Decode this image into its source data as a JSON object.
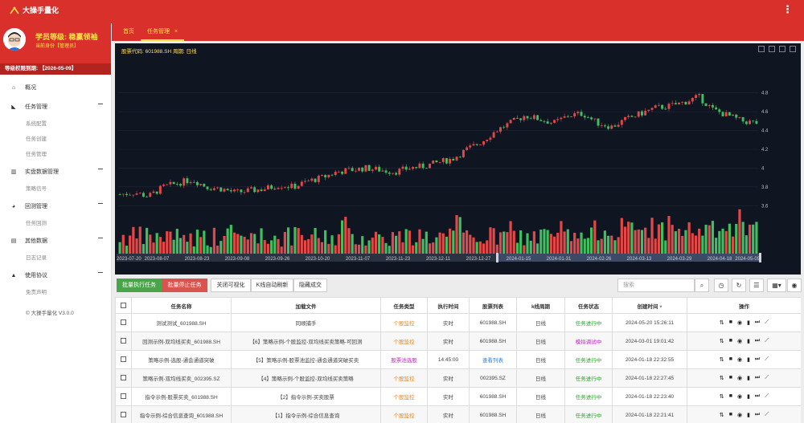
{
  "app": {
    "title": "大操手量化"
  },
  "profile": {
    "level": "学员等级:   稳赢领袖",
    "role": "当前身份【管理员】",
    "expiry": "等级权限到期:    【2026-05-09】"
  },
  "sidebar": {
    "items": [
      {
        "label": "概况",
        "icon": "home-icon",
        "subs": []
      },
      {
        "label": "任务管理",
        "icon": "chart-icon",
        "subs": [
          "系统配置",
          "任务创建",
          "任务管理"
        ]
      },
      {
        "label": "实盘数据管理",
        "icon": "bar-chart-icon",
        "subs": [
          "策略信号"
        ]
      },
      {
        "label": "回测管理",
        "icon": "pie-chart-icon",
        "subs": [
          "任务回测"
        ]
      },
      {
        "label": "其他数据",
        "icon": "file-icon",
        "subs": [
          "日志记录"
        ]
      },
      {
        "label": "使用协议",
        "icon": "warning-icon",
        "subs": [
          "免责声明"
        ]
      }
    ],
    "version": "© 大操手量化 V3.0.0"
  },
  "tabs": {
    "home": "首页",
    "active": "任务管理",
    "close": "×"
  },
  "chart": {
    "title": "股票代码: 601988.SH 周期: 日线"
  },
  "chart_data": {
    "type": "candlestick",
    "x_ticks": [
      "2023-07-20",
      "2023-08-07",
      "2023-08-23",
      "2023-09-08",
      "2023-09-26",
      "2023-10-20",
      "2023-11-07",
      "2023-11-23",
      "2023-12-11",
      "2023-12-27",
      "2024-01-15",
      "2024-01-31",
      "2024-02-26",
      "2024-03-13",
      "2024-03-29",
      "2024-04-18",
      "2024-05-09"
    ],
    "y_ticks": [
      "4.8",
      "4.6",
      "4.4",
      "4.2",
      "4",
      "3.8",
      "3.6"
    ],
    "ylim": [
      3.5,
      4.9
    ],
    "close_trend": [
      3.72,
      3.74,
      3.7,
      3.8,
      3.84,
      3.88,
      3.8,
      3.78,
      3.74,
      3.76,
      3.78,
      3.82,
      3.8,
      3.86,
      3.9,
      3.96,
      3.98,
      4.0,
      3.98,
      3.96,
      4.0,
      4.02,
      4.06,
      4.1,
      4.2,
      4.28,
      4.4,
      4.48,
      4.56,
      4.52,
      4.48,
      4.56,
      4.58,
      4.48,
      4.44,
      4.52,
      4.58,
      4.64,
      4.66,
      4.7,
      4.76,
      4.62,
      4.56,
      4.5,
      4.48
    ],
    "up_color": "#e24848",
    "down_color": "#3fbf5f"
  },
  "toolbar": {
    "batch_run": "批量执行任务",
    "batch_stop": "批量停止任务",
    "close_vis": "关闭可视化",
    "kline_refresh": "K线自动刷新",
    "hide_trades": "隐藏成交",
    "search_placeholder": "搜索"
  },
  "table": {
    "headers": [
      "任务名称",
      "加载文件",
      "任务类型",
      "执行时间",
      "股票列表",
      "k线周期",
      "任务状态",
      "创建时间",
      "操作"
    ],
    "rows": [
      {
        "name": "测试测试_601988.SH",
        "file": "同顺捕手",
        "type": "个股监控",
        "type_color": "#e0862a",
        "time": "实时",
        "stocks": "601988.SH",
        "stocks_color": "#444",
        "period": "日线",
        "status": "任务进行中",
        "status_color": "#2aa32a",
        "created": "2024-05-20 15:26:11"
      },
      {
        "name": "回测示例-双均线买卖_601988.SH",
        "file": "【6】策略示例-个股监控-双均线买卖策略-可回测",
        "type": "个股监控",
        "type_color": "#e0862a",
        "time": "实时",
        "stocks": "601988.SH",
        "stocks_color": "#444",
        "period": "日线",
        "status": "模拟调试中",
        "status_color": "#c026c0",
        "created": "2024-03-01 19:01:42"
      },
      {
        "name": "策略示例-选股-通会通道突破",
        "file": "【5】策略示例-股票池监控-通会通道突破买卖",
        "type": "股票池选股",
        "type_color": "#c026c0",
        "time": "14:45:00",
        "stocks": "查看列表",
        "stocks_color": "#2a7fd4",
        "period": "日线",
        "status": "任务进行中",
        "status_color": "#2aa32a",
        "created": "2024-01-18 22:32:55"
      },
      {
        "name": "策略示例-双均线买卖_002395.SZ",
        "file": "【4】策略示例-个股监控-双均线买卖策略",
        "type": "个股监控",
        "type_color": "#e0862a",
        "time": "实时",
        "stocks": "002395.SZ",
        "stocks_color": "#444",
        "period": "日线",
        "status": "任务进行中",
        "status_color": "#2aa32a",
        "created": "2024-01-18 22:27:45"
      },
      {
        "name": "指令示例-股票买卖_601988.SH",
        "file": "【2】指令示例-买卖股票",
        "type": "个股监控",
        "type_color": "#e0862a",
        "time": "实时",
        "stocks": "601988.SH",
        "stocks_color": "#444",
        "period": "日线",
        "status": "任务进行中",
        "status_color": "#2aa32a",
        "created": "2024-01-18 22:23:40"
      },
      {
        "name": "指令示例-综合信息查询_601988.SH",
        "file": "【1】指令示例-综合信息查询",
        "type": "个股监控",
        "type_color": "#e0862a",
        "time": "实时",
        "stocks": "601988.SH",
        "stocks_color": "#444",
        "period": "日线",
        "status": "任务进行中",
        "status_color": "#2aa32a",
        "created": "2024-01-18 22:21:41"
      }
    ]
  }
}
